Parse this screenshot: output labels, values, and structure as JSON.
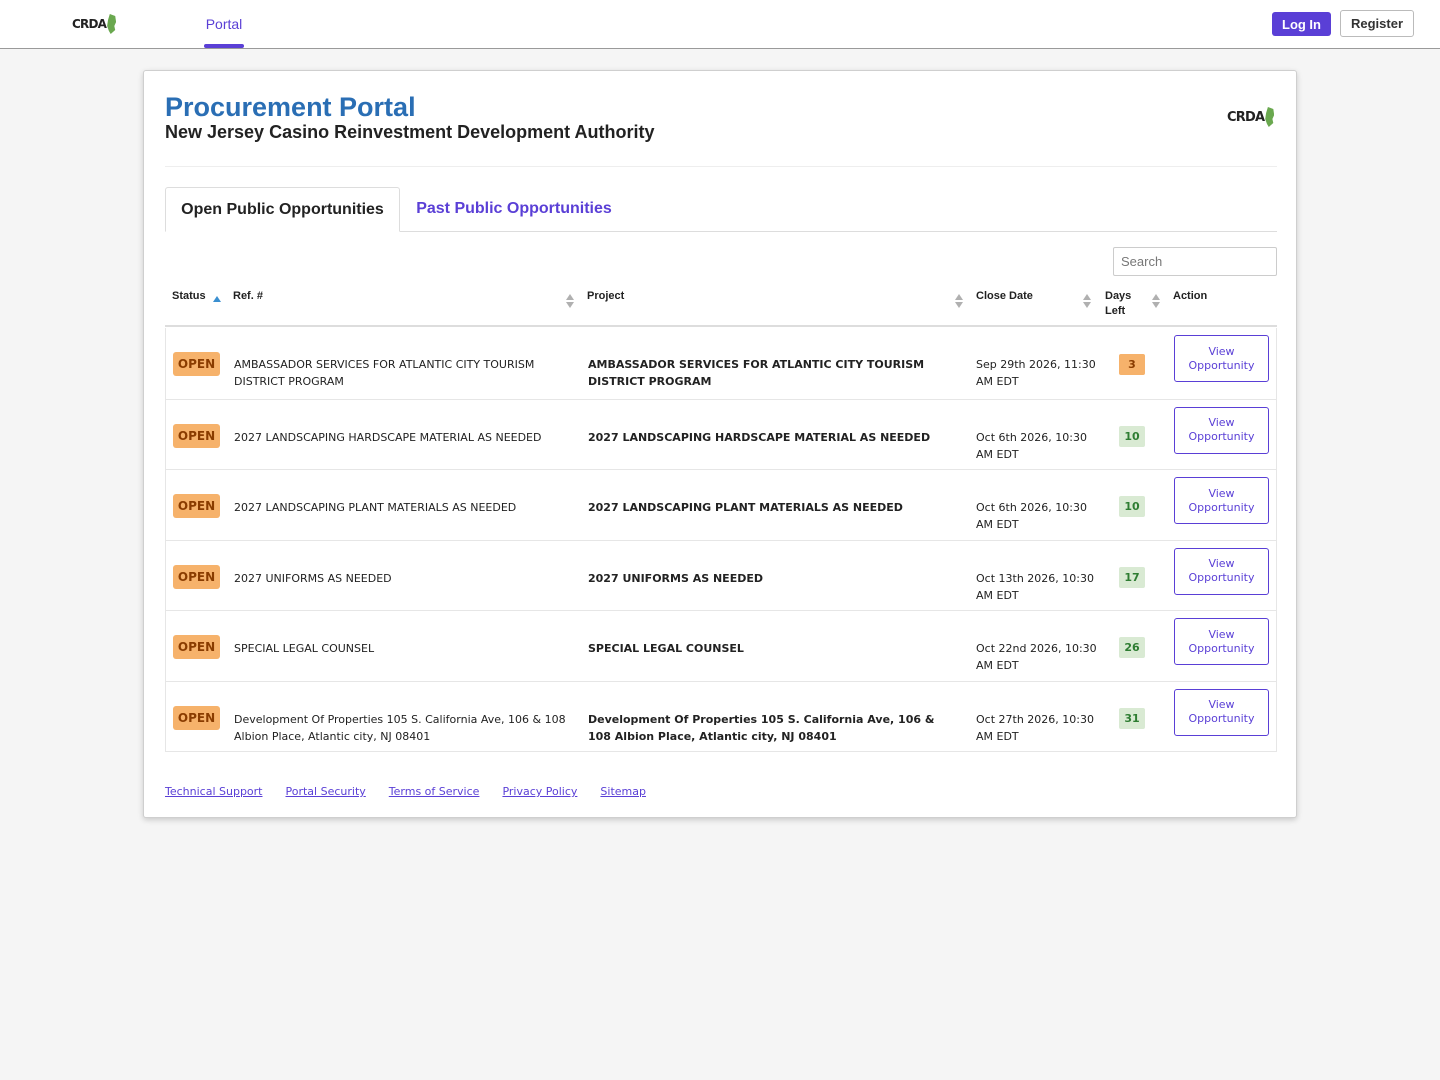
{
  "nav": {
    "logo_text": "CRDA",
    "tab_label": "Portal",
    "login_label": "Log In",
    "register_label": "Register"
  },
  "header": {
    "title": "Procurement Portal",
    "subtitle": "New Jersey Casino Reinvestment Development Authority",
    "logo_text": "CRDA"
  },
  "tabs": {
    "active": "Open Public Opportunities",
    "past": "Past Public Opportunities"
  },
  "search": {
    "placeholder": "Search"
  },
  "table": {
    "headers": {
      "status": "Status",
      "ref": "Ref. #",
      "project": "Project",
      "close_date": "Close Date",
      "days_left_1": "Days",
      "days_left_2": "Left",
      "action": "Action"
    },
    "rows": [
      {
        "status": "OPEN",
        "ref": "AMBASSADOR SERVICES FOR ATLANTIC CITY TOURISM DISTRICT PROGRAM",
        "project": "AMBASSADOR SERVICES FOR ATLANTIC CITY TOURISM DISTRICT PROGRAM",
        "close_date": "Sep 29th 2026, 11:30 AM EDT",
        "days_left": "3",
        "days_color": "orange",
        "action_1": "View",
        "action_2": "Opportunity"
      },
      {
        "status": "OPEN",
        "ref": "2027 LANDSCAPING HARDSCAPE MATERIAL AS NEEDED",
        "project": "2027 LANDSCAPING HARDSCAPE MATERIAL AS NEEDED",
        "close_date": "Oct 6th 2026, 10:30 AM EDT",
        "days_left": "10",
        "days_color": "green",
        "action_1": "View",
        "action_2": "Opportunity"
      },
      {
        "status": "OPEN",
        "ref": "2027 LANDSCAPING PLANT MATERIALS AS NEEDED",
        "project": "2027 LANDSCAPING PLANT MATERIALS AS NEEDED",
        "close_date": "Oct 6th 2026, 10:30 AM EDT",
        "days_left": "10",
        "days_color": "green",
        "action_1": "View",
        "action_2": "Opportunity"
      },
      {
        "status": "OPEN",
        "ref": "2027 UNIFORMS AS NEEDED",
        "project": "2027 UNIFORMS AS NEEDED",
        "close_date": "Oct 13th 2026, 10:30 AM EDT",
        "days_left": "17",
        "days_color": "green",
        "action_1": "View",
        "action_2": "Opportunity"
      },
      {
        "status": "OPEN",
        "ref": "SPECIAL LEGAL COUNSEL",
        "project": "SPECIAL LEGAL COUNSEL",
        "close_date": "Oct 22nd 2026, 10:30 AM EDT",
        "days_left": "26",
        "days_color": "green",
        "action_1": "View",
        "action_2": "Opportunity"
      },
      {
        "status": "OPEN",
        "ref": "Development Of Properties 105 S. California Ave, 106 & 108 Albion Place, Atlantic city, NJ 08401",
        "project": "Development Of Properties 105 S. California Ave, 106 & 108 Albion Place, Atlantic city, NJ 08401",
        "close_date": "Oct 27th 2026, 10:30 AM EDT",
        "days_left": "31",
        "days_color": "green",
        "action_1": "View",
        "action_2": "Opportunity"
      }
    ]
  },
  "footer": {
    "links": [
      "Technical Support",
      "Portal Security",
      "Terms of Service",
      "Privacy Policy",
      "Sitemap"
    ]
  }
}
